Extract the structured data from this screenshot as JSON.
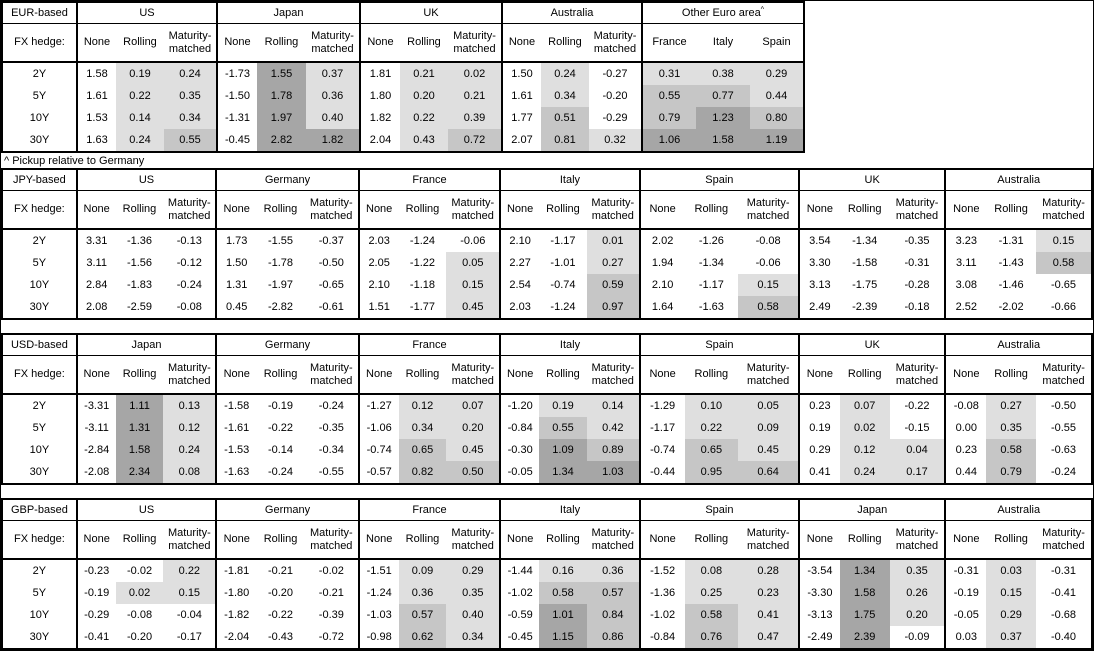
{
  "note": "^ Pickup relative to Germany",
  "fx_hedge_label": "FX hedge:",
  "row_labels": [
    "2Y",
    "5Y",
    "10Y",
    "30Y"
  ],
  "colors": {
    "white": "#ffffff",
    "light": "#dfdfdf",
    "medium": "#c6c6c6",
    "dark": "#a6a6a6"
  },
  "shade_thresholds": {
    "min": 0,
    "mid": 0.5,
    "high": 1.0
  },
  "tables": [
    {
      "base": "EUR-based",
      "groups": [
        {
          "name": "US",
          "cols": [
            "None",
            "Rolling",
            "Maturity-matched"
          ],
          "shaded_columns": [
            false,
            true,
            true
          ],
          "rows": [
            [
              1.58,
              0.19,
              0.24
            ],
            [
              1.61,
              0.22,
              0.35
            ],
            [
              1.53,
              0.14,
              0.34
            ],
            [
              1.63,
              0.24,
              0.55
            ]
          ]
        },
        {
          "name": "Japan",
          "cols": [
            "None",
            "Rolling",
            "Maturity-matched"
          ],
          "shaded_columns": [
            false,
            true,
            true
          ],
          "rows": [
            [
              -1.73,
              1.55,
              0.37
            ],
            [
              -1.5,
              1.78,
              0.36
            ],
            [
              -1.31,
              1.97,
              0.4
            ],
            [
              -0.45,
              2.82,
              1.82
            ]
          ]
        },
        {
          "name": "UK",
          "cols": [
            "None",
            "Rolling",
            "Maturity-matched"
          ],
          "shaded_columns": [
            false,
            true,
            true
          ],
          "rows": [
            [
              1.81,
              0.21,
              0.02
            ],
            [
              1.8,
              0.2,
              0.21
            ],
            [
              1.82,
              0.22,
              0.39
            ],
            [
              2.04,
              0.43,
              0.72
            ]
          ]
        },
        {
          "name": "Australia",
          "cols": [
            "None",
            "Rolling",
            "Maturity-matched"
          ],
          "shaded_columns": [
            false,
            true,
            true
          ],
          "rows": [
            [
              1.5,
              0.24,
              -0.27
            ],
            [
              1.61,
              0.34,
              -0.2
            ],
            [
              1.77,
              0.51,
              -0.29
            ],
            [
              2.07,
              0.81,
              0.32
            ]
          ]
        },
        {
          "name": "Other Euro area",
          "superscript": "^",
          "cols": [
            "France",
            "Italy",
            "Spain"
          ],
          "shaded_columns": [
            true,
            true,
            true
          ],
          "rows": [
            [
              0.31,
              0.38,
              0.29
            ],
            [
              0.55,
              0.77,
              0.44
            ],
            [
              0.79,
              1.23,
              0.8
            ],
            [
              1.06,
              1.58,
              1.19
            ]
          ]
        }
      ]
    },
    {
      "base": "JPY-based",
      "groups": [
        {
          "name": "US",
          "cols": [
            "None",
            "Rolling",
            "Maturity-matched"
          ],
          "shaded_columns": [
            false,
            true,
            true
          ],
          "rows": [
            [
              3.31,
              -1.36,
              -0.13
            ],
            [
              3.11,
              -1.56,
              -0.12
            ],
            [
              2.84,
              -1.83,
              -0.24
            ],
            [
              2.08,
              -2.59,
              -0.08
            ]
          ]
        },
        {
          "name": "Germany",
          "cols": [
            "None",
            "Rolling",
            "Maturity-matched"
          ],
          "shaded_columns": [
            false,
            true,
            true
          ],
          "rows": [
            [
              1.73,
              -1.55,
              -0.37
            ],
            [
              1.5,
              -1.78,
              -0.5
            ],
            [
              1.31,
              -1.97,
              -0.65
            ],
            [
              0.45,
              -2.82,
              -0.61
            ]
          ]
        },
        {
          "name": "France",
          "cols": [
            "None",
            "Rolling",
            "Maturity-matched"
          ],
          "shaded_columns": [
            false,
            true,
            true
          ],
          "rows": [
            [
              2.03,
              -1.24,
              -0.06
            ],
            [
              2.05,
              -1.22,
              0.05
            ],
            [
              2.1,
              -1.18,
              0.15
            ],
            [
              1.51,
              -1.77,
              0.45
            ]
          ]
        },
        {
          "name": "Italy",
          "cols": [
            "None",
            "Rolling",
            "Maturity-matched"
          ],
          "shaded_columns": [
            false,
            true,
            true
          ],
          "rows": [
            [
              2.1,
              -1.17,
              0.01
            ],
            [
              2.27,
              -1.01,
              0.27
            ],
            [
              2.54,
              -0.74,
              0.59
            ],
            [
              2.03,
              -1.24,
              0.97
            ]
          ]
        },
        {
          "name": "Spain",
          "cols": [
            "None",
            "Rolling",
            "Maturity-matched"
          ],
          "shaded_columns": [
            false,
            true,
            true
          ],
          "rows": [
            [
              2.02,
              -1.26,
              -0.08
            ],
            [
              1.94,
              -1.34,
              -0.06
            ],
            [
              2.1,
              -1.17,
              0.15
            ],
            [
              1.64,
              -1.63,
              0.58
            ]
          ]
        },
        {
          "name": "UK",
          "cols": [
            "None",
            "Rolling",
            "Maturity-matched"
          ],
          "shaded_columns": [
            false,
            true,
            true
          ],
          "rows": [
            [
              3.54,
              -1.34,
              -0.35
            ],
            [
              3.3,
              -1.58,
              -0.31
            ],
            [
              3.13,
              -1.75,
              -0.28
            ],
            [
              2.49,
              -2.39,
              -0.18
            ]
          ]
        },
        {
          "name": "Australia",
          "cols": [
            "None",
            "Rolling",
            "Maturity-matched"
          ],
          "shaded_columns": [
            false,
            true,
            true
          ],
          "rows": [
            [
              3.23,
              -1.31,
              0.15
            ],
            [
              3.11,
              -1.43,
              0.58
            ],
            [
              3.08,
              -1.46,
              -0.65
            ],
            [
              2.52,
              -2.02,
              -0.66
            ]
          ]
        }
      ]
    },
    {
      "base": "USD-based",
      "groups": [
        {
          "name": "Japan",
          "cols": [
            "None",
            "Rolling",
            "Maturity-matched"
          ],
          "shaded_columns": [
            false,
            true,
            true
          ],
          "rows": [
            [
              -3.31,
              1.11,
              0.13
            ],
            [
              -3.11,
              1.31,
              0.12
            ],
            [
              -2.84,
              1.58,
              0.24
            ],
            [
              -2.08,
              2.34,
              0.08
            ]
          ]
        },
        {
          "name": "Germany",
          "cols": [
            "None",
            "Rolling",
            "Maturity-matched"
          ],
          "shaded_columns": [
            false,
            true,
            true
          ],
          "rows": [
            [
              -1.58,
              -0.19,
              -0.24
            ],
            [
              -1.61,
              -0.22,
              -0.35
            ],
            [
              -1.53,
              -0.14,
              -0.34
            ],
            [
              -1.63,
              -0.24,
              -0.55
            ]
          ]
        },
        {
          "name": "France",
          "cols": [
            "None",
            "Rolling",
            "Maturity-matched"
          ],
          "shaded_columns": [
            false,
            true,
            true
          ],
          "rows": [
            [
              -1.27,
              0.12,
              0.07
            ],
            [
              -1.06,
              0.34,
              0.2
            ],
            [
              -0.74,
              0.65,
              0.45
            ],
            [
              -0.57,
              0.82,
              0.5
            ]
          ]
        },
        {
          "name": "Italy",
          "cols": [
            "None",
            "Rolling",
            "Maturity-matched"
          ],
          "shaded_columns": [
            false,
            true,
            true
          ],
          "rows": [
            [
              -1.2,
              0.19,
              0.14
            ],
            [
              -0.84,
              0.55,
              0.42
            ],
            [
              -0.3,
              1.09,
              0.89
            ],
            [
              -0.05,
              1.34,
              1.03
            ]
          ]
        },
        {
          "name": "Spain",
          "cols": [
            "None",
            "Rolling",
            "Maturity-matched"
          ],
          "shaded_columns": [
            false,
            true,
            true
          ],
          "rows": [
            [
              -1.29,
              0.1,
              0.05
            ],
            [
              -1.17,
              0.22,
              0.09
            ],
            [
              -0.74,
              0.65,
              0.45
            ],
            [
              -0.44,
              0.95,
              0.64
            ]
          ]
        },
        {
          "name": "UK",
          "cols": [
            "None",
            "Rolling",
            "Maturity-matched"
          ],
          "shaded_columns": [
            false,
            true,
            true
          ],
          "rows": [
            [
              0.23,
              0.07,
              -0.22
            ],
            [
              0.19,
              0.02,
              -0.15
            ],
            [
              0.29,
              0.12,
              0.04
            ],
            [
              0.41,
              0.24,
              0.17
            ]
          ]
        },
        {
          "name": "Australia",
          "cols": [
            "None",
            "Rolling",
            "Maturity-matched"
          ],
          "shaded_columns": [
            false,
            true,
            true
          ],
          "rows": [
            [
              -0.08,
              0.27,
              -0.5
            ],
            [
              0.0,
              0.35,
              -0.55
            ],
            [
              0.23,
              0.58,
              -0.63
            ],
            [
              0.44,
              0.79,
              -0.24
            ]
          ]
        }
      ]
    },
    {
      "base": "GBP-based",
      "groups": [
        {
          "name": "US",
          "cols": [
            "None",
            "Rolling",
            "Maturity-matched"
          ],
          "shaded_columns": [
            false,
            true,
            true
          ],
          "rows": [
            [
              -0.23,
              -0.02,
              0.22
            ],
            [
              -0.19,
              0.02,
              0.15
            ],
            [
              -0.29,
              -0.08,
              -0.04
            ],
            [
              -0.41,
              -0.2,
              -0.17
            ]
          ]
        },
        {
          "name": "Germany",
          "cols": [
            "None",
            "Rolling",
            "Maturity-matched"
          ],
          "shaded_columns": [
            false,
            true,
            true
          ],
          "rows": [
            [
              -1.81,
              -0.21,
              -0.02
            ],
            [
              -1.8,
              -0.2,
              -0.21
            ],
            [
              -1.82,
              -0.22,
              -0.39
            ],
            [
              -2.04,
              -0.43,
              -0.72
            ]
          ]
        },
        {
          "name": "France",
          "cols": [
            "None",
            "Rolling",
            "Maturity-matched"
          ],
          "shaded_columns": [
            false,
            true,
            true
          ],
          "rows": [
            [
              -1.51,
              0.09,
              0.29
            ],
            [
              -1.24,
              0.36,
              0.35
            ],
            [
              -1.03,
              0.57,
              0.4
            ],
            [
              -0.98,
              0.62,
              0.34
            ]
          ]
        },
        {
          "name": "Italy",
          "cols": [
            "None",
            "Rolling",
            "Maturity-matched"
          ],
          "shaded_columns": [
            false,
            true,
            true
          ],
          "rows": [
            [
              -1.44,
              0.16,
              0.36
            ],
            [
              -1.02,
              0.58,
              0.57
            ],
            [
              -0.59,
              1.01,
              0.84
            ],
            [
              -0.45,
              1.15,
              0.86
            ]
          ]
        },
        {
          "name": "Spain",
          "cols": [
            "None",
            "Rolling",
            "Maturity-matched"
          ],
          "shaded_columns": [
            false,
            true,
            true
          ],
          "rows": [
            [
              -1.52,
              0.08,
              0.28
            ],
            [
              -1.36,
              0.25,
              0.23
            ],
            [
              -1.02,
              0.58,
              0.41
            ],
            [
              -0.84,
              0.76,
              0.47
            ]
          ]
        },
        {
          "name": "Japan",
          "cols": [
            "None",
            "Rolling",
            "Maturity-matched"
          ],
          "shaded_columns": [
            false,
            true,
            true
          ],
          "rows": [
            [
              -3.54,
              1.34,
              0.35
            ],
            [
              -3.3,
              1.58,
              0.26
            ],
            [
              -3.13,
              1.75,
              0.2
            ],
            [
              -2.49,
              2.39,
              -0.09
            ]
          ]
        },
        {
          "name": "Australia",
          "cols": [
            "None",
            "Rolling",
            "Maturity-matched"
          ],
          "shaded_columns": [
            false,
            true,
            true
          ],
          "rows": [
            [
              -0.31,
              0.03,
              -0.31
            ],
            [
              -0.19,
              0.15,
              -0.41
            ],
            [
              -0.05,
              0.29,
              -0.68
            ],
            [
              0.03,
              0.37,
              -0.4
            ]
          ]
        }
      ]
    }
  ]
}
